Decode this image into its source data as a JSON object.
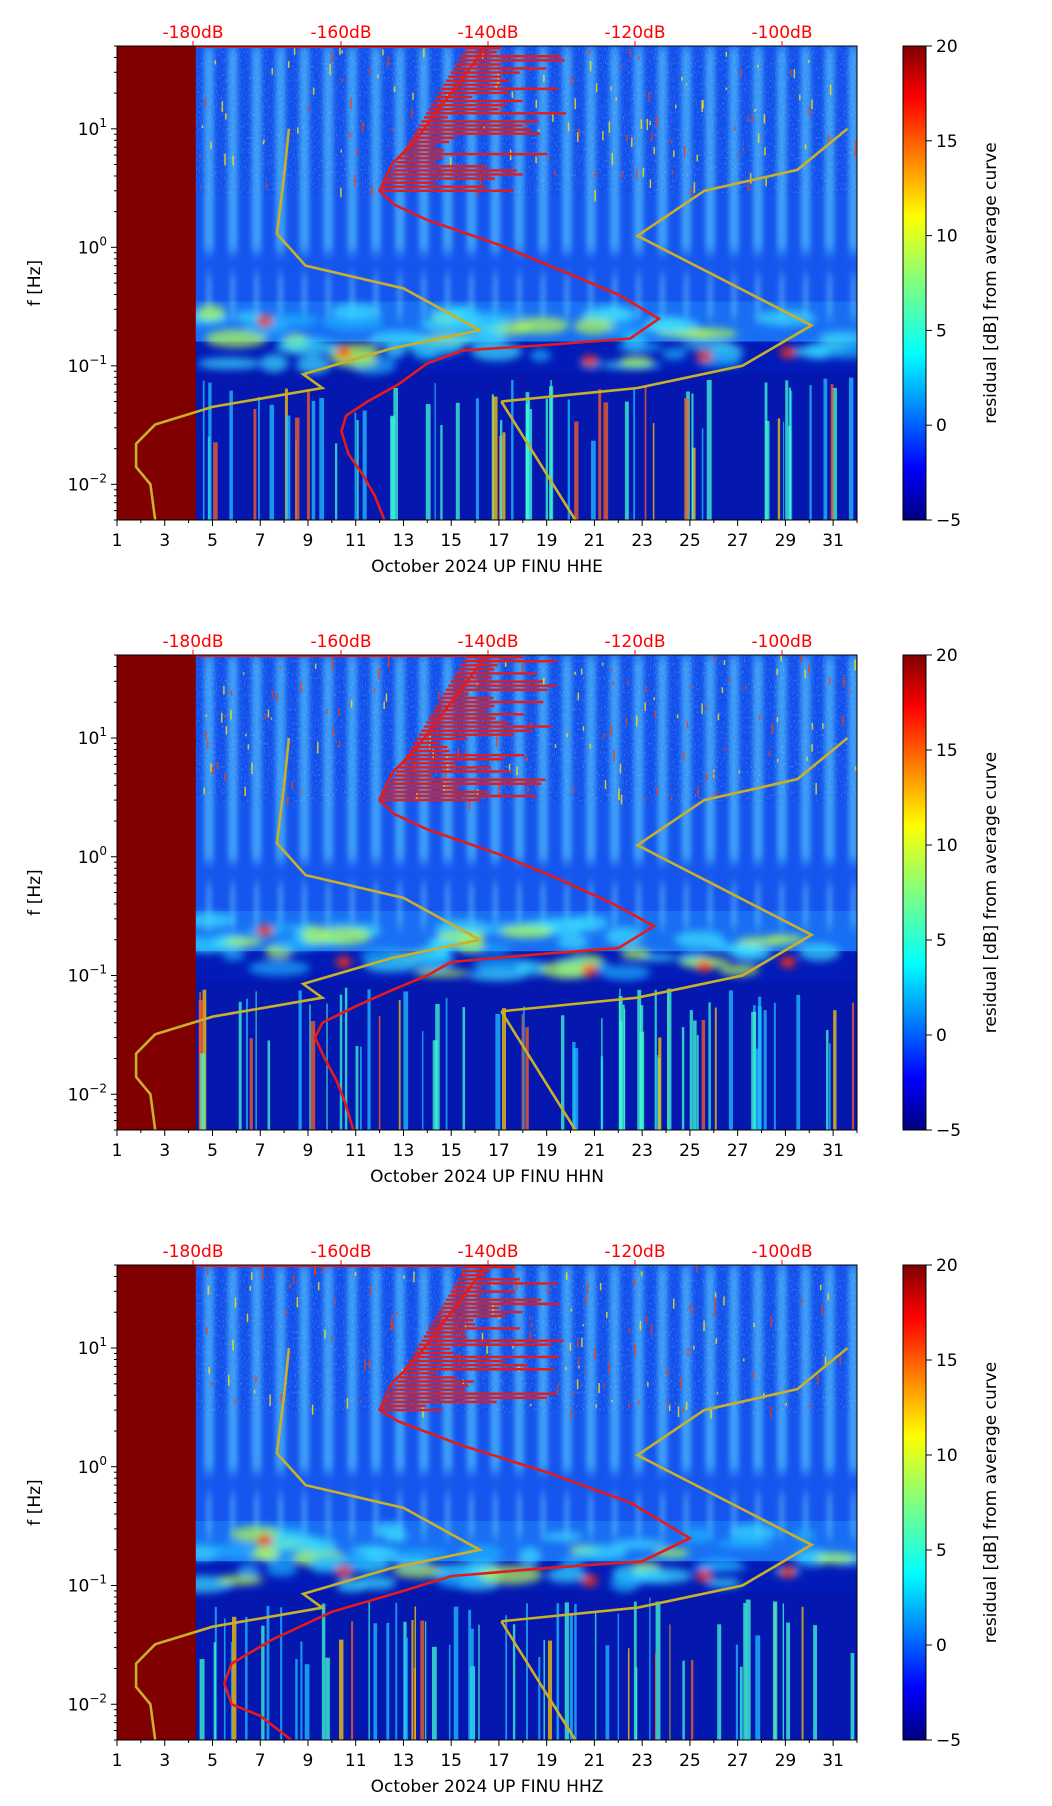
{
  "colors": {
    "noise_model": "#c8b02a",
    "psd_curve": "#e61a1a",
    "top_axis_text": "#ff0000",
    "masked_region": "#800000"
  },
  "colormap": "jet",
  "chart_data": [
    {
      "type": "heatmap",
      "title": "",
      "xlabel": "October 2024 UP FINU  HHE",
      "ylabel": "f [Hz]",
      "x_ticks": [
        "1",
        "3",
        "5",
        "7",
        "9",
        "11",
        "13",
        "15",
        "17",
        "19",
        "21",
        "23",
        "25",
        "27",
        "29",
        "31"
      ],
      "x_range": [
        1,
        32
      ],
      "y_scale": "log",
      "y_range": [
        0.005,
        50
      ],
      "y_ticks": [
        {
          "base": "10",
          "exp": "1",
          "value": 10
        },
        {
          "base": "10",
          "exp": "0",
          "value": 1
        },
        {
          "base": "10",
          "exp": "−1",
          "value": 0.1
        },
        {
          "base": "10",
          "exp": "−2",
          "value": 0.01
        }
      ],
      "top_axis_ticks": [
        "-180dB",
        "-160dB",
        "-140dB",
        "-120dB",
        "-100dB"
      ],
      "colorbar": {
        "label": "residual [dB] from average curve",
        "range": [
          -5,
          20
        ],
        "ticks": [
          "20",
          "15",
          "10",
          "5",
          "0",
          "−5"
        ]
      },
      "masked_until_day": 4.3,
      "series": [
        {
          "kind": "noise_model_low",
          "points": [
            [
              8.2,
              10
            ],
            [
              8.0,
              4
            ],
            [
              7.7,
              1.3
            ],
            [
              8.9,
              0.7
            ],
            [
              13.0,
              0.45
            ],
            [
              16.2,
              0.2
            ],
            [
              12.5,
              0.14
            ],
            [
              8.8,
              0.085
            ],
            [
              9.6,
              0.065
            ],
            [
              5.0,
              0.045
            ],
            [
              2.6,
              0.032
            ],
            [
              1.8,
              0.022
            ],
            [
              1.8,
              0.014
            ],
            [
              2.4,
              0.01
            ],
            [
              2.6,
              0.005
            ]
          ]
        },
        {
          "kind": "noise_model_high",
          "points": [
            [
              17.1,
              0.05
            ],
            [
              22.8,
              0.065
            ],
            [
              27.2,
              0.1
            ],
            [
              30.1,
              0.22
            ],
            [
              22.8,
              1.25
            ],
            [
              25.6,
              3
            ],
            [
              29.5,
              4.5
            ],
            [
              31.6,
              10
            ]
          ]
        },
        {
          "kind": "model_segment",
          "points": [
            [
              17.1,
              0.05
            ],
            [
              20.2,
              0.005
            ]
          ]
        },
        {
          "kind": "psd_curve",
          "points": [
            [
              16.5,
              50
            ],
            [
              15.0,
              20
            ],
            [
              13.5,
              8
            ],
            [
              12.5,
              5
            ],
            [
              12.0,
              3
            ],
            [
              12.6,
              2.3
            ],
            [
              14.0,
              1.7
            ],
            [
              17.0,
              1.05
            ],
            [
              19.5,
              0.65
            ],
            [
              22.0,
              0.4
            ],
            [
              23.7,
              0.25
            ],
            [
              22.5,
              0.17
            ],
            [
              19.0,
              0.15
            ],
            [
              15.5,
              0.135
            ],
            [
              14.0,
              0.105
            ],
            [
              12.8,
              0.07
            ],
            [
              11.5,
              0.05
            ],
            [
              10.6,
              0.038
            ],
            [
              10.4,
              0.028
            ],
            [
              10.7,
              0.018
            ],
            [
              11.3,
              0.012
            ],
            [
              11.8,
              0.008
            ],
            [
              12.2,
              0.005
            ]
          ]
        }
      ],
      "psd_high_freq": {
        "min_day": 12.0,
        "max_day": 19.0,
        "min_f": 3.0,
        "max_f": 48.0
      }
    },
    {
      "type": "heatmap",
      "title": "",
      "xlabel": "October 2024 UP FINU  HHN",
      "ylabel": "f [Hz]",
      "x_ticks": [
        "1",
        "3",
        "5",
        "7",
        "9",
        "11",
        "13",
        "15",
        "17",
        "19",
        "21",
        "23",
        "25",
        "27",
        "29",
        "31"
      ],
      "x_range": [
        1,
        32
      ],
      "y_scale": "log",
      "y_range": [
        0.005,
        50
      ],
      "y_ticks": [
        {
          "base": "10",
          "exp": "1",
          "value": 10
        },
        {
          "base": "10",
          "exp": "0",
          "value": 1
        },
        {
          "base": "10",
          "exp": "−1",
          "value": 0.1
        },
        {
          "base": "10",
          "exp": "−2",
          "value": 0.01
        }
      ],
      "top_axis_ticks": [
        "-180dB",
        "-160dB",
        "-140dB",
        "-120dB",
        "-100dB"
      ],
      "colorbar": {
        "label": "residual [dB] from average curve",
        "range": [
          -5,
          20
        ],
        "ticks": [
          "20",
          "15",
          "10",
          "5",
          "0",
          "−5"
        ]
      },
      "masked_until_day": 4.3,
      "series": [
        {
          "kind": "noise_model_low",
          "points": [
            [
              8.2,
              10
            ],
            [
              8.0,
              4
            ],
            [
              7.7,
              1.3
            ],
            [
              8.9,
              0.7
            ],
            [
              13.0,
              0.45
            ],
            [
              16.2,
              0.2
            ],
            [
              12.5,
              0.14
            ],
            [
              8.8,
              0.085
            ],
            [
              9.6,
              0.065
            ],
            [
              5.0,
              0.045
            ],
            [
              2.6,
              0.032
            ],
            [
              1.8,
              0.022
            ],
            [
              1.8,
              0.014
            ],
            [
              2.4,
              0.01
            ],
            [
              2.6,
              0.005
            ]
          ]
        },
        {
          "kind": "noise_model_high",
          "points": [
            [
              17.1,
              0.05
            ],
            [
              22.8,
              0.065
            ],
            [
              27.2,
              0.1
            ],
            [
              30.1,
              0.22
            ],
            [
              22.8,
              1.25
            ],
            [
              25.6,
              3
            ],
            [
              29.5,
              4.5
            ],
            [
              31.6,
              10
            ]
          ]
        },
        {
          "kind": "model_segment",
          "points": [
            [
              17.1,
              0.05
            ],
            [
              20.2,
              0.005
            ]
          ]
        },
        {
          "kind": "psd_curve",
          "points": [
            [
              16.5,
              50
            ],
            [
              15.0,
              20
            ],
            [
              13.5,
              8
            ],
            [
              12.5,
              5
            ],
            [
              12.0,
              3
            ],
            [
              12.6,
              2.3
            ],
            [
              14.0,
              1.7
            ],
            [
              17.0,
              1.05
            ],
            [
              19.5,
              0.65
            ],
            [
              21.8,
              0.4
            ],
            [
              23.5,
              0.26
            ],
            [
              22.0,
              0.17
            ],
            [
              18.5,
              0.15
            ],
            [
              15.0,
              0.13
            ],
            [
              14.0,
              0.1
            ],
            [
              12.5,
              0.075
            ],
            [
              11.0,
              0.055
            ],
            [
              9.6,
              0.04
            ],
            [
              9.3,
              0.03
            ],
            [
              9.7,
              0.02
            ],
            [
              10.2,
              0.013
            ],
            [
              10.6,
              0.008
            ],
            [
              10.9,
              0.005
            ]
          ]
        }
      ],
      "psd_high_freq": {
        "min_day": 12.0,
        "max_day": 18.5,
        "min_f": 3.0,
        "max_f": 48.0
      }
    },
    {
      "type": "heatmap",
      "title": "",
      "xlabel": "October 2024 UP FINU  HHZ",
      "ylabel": "f [Hz]",
      "x_ticks": [
        "1",
        "3",
        "5",
        "7",
        "9",
        "11",
        "13",
        "15",
        "17",
        "19",
        "21",
        "23",
        "25",
        "27",
        "29",
        "31"
      ],
      "x_range": [
        1,
        32
      ],
      "y_scale": "log",
      "y_range": [
        0.005,
        50
      ],
      "y_ticks": [
        {
          "base": "10",
          "exp": "1",
          "value": 10
        },
        {
          "base": "10",
          "exp": "0",
          "value": 1
        },
        {
          "base": "10",
          "exp": "−1",
          "value": 0.1
        },
        {
          "base": "10",
          "exp": "−2",
          "value": 0.01
        }
      ],
      "top_axis_ticks": [
        "-180dB",
        "-160dB",
        "-140dB",
        "-120dB",
        "-100dB"
      ],
      "colorbar": {
        "label": "residual [dB] from average curve",
        "range": [
          -5,
          20
        ],
        "ticks": [
          "20",
          "15",
          "10",
          "5",
          "0",
          "−5"
        ]
      },
      "masked_until_day": 4.3,
      "series": [
        {
          "kind": "noise_model_low",
          "points": [
            [
              8.2,
              10
            ],
            [
              8.0,
              4
            ],
            [
              7.7,
              1.3
            ],
            [
              8.9,
              0.7
            ],
            [
              13.0,
              0.45
            ],
            [
              16.2,
              0.2
            ],
            [
              12.5,
              0.14
            ],
            [
              8.8,
              0.085
            ],
            [
              9.6,
              0.065
            ],
            [
              5.0,
              0.045
            ],
            [
              2.6,
              0.032
            ],
            [
              1.8,
              0.022
            ],
            [
              1.8,
              0.014
            ],
            [
              2.4,
              0.01
            ],
            [
              2.6,
              0.005
            ]
          ]
        },
        {
          "kind": "noise_model_high",
          "points": [
            [
              17.1,
              0.05
            ],
            [
              22.8,
              0.065
            ],
            [
              27.2,
              0.1
            ],
            [
              30.1,
              0.22
            ],
            [
              22.8,
              1.25
            ],
            [
              25.6,
              3
            ],
            [
              29.5,
              4.5
            ],
            [
              31.6,
              10
            ]
          ]
        },
        {
          "kind": "model_segment",
          "points": [
            [
              17.1,
              0.05
            ],
            [
              20.2,
              0.005
            ]
          ]
        },
        {
          "kind": "psd_curve",
          "points": [
            [
              16.5,
              50
            ],
            [
              15.0,
              20
            ],
            [
              13.5,
              8
            ],
            [
              12.5,
              5
            ],
            [
              12.0,
              3
            ],
            [
              12.8,
              2.4
            ],
            [
              15.5,
              1.5
            ],
            [
              19.0,
              0.9
            ],
            [
              22.5,
              0.5
            ],
            [
              25.0,
              0.25
            ],
            [
              23.0,
              0.16
            ],
            [
              19.0,
              0.14
            ],
            [
              15.0,
              0.12
            ],
            [
              13.0,
              0.09
            ],
            [
              10.0,
              0.06
            ],
            [
              7.5,
              0.035
            ],
            [
              5.8,
              0.022
            ],
            [
              5.5,
              0.015
            ],
            [
              5.8,
              0.01
            ],
            [
              7.0,
              0.008
            ],
            [
              8.3,
              0.005
            ]
          ]
        }
      ],
      "psd_high_freq": {
        "min_day": 12.0,
        "max_day": 19.0,
        "min_f": 3.0,
        "max_f": 48.0
      }
    }
  ]
}
